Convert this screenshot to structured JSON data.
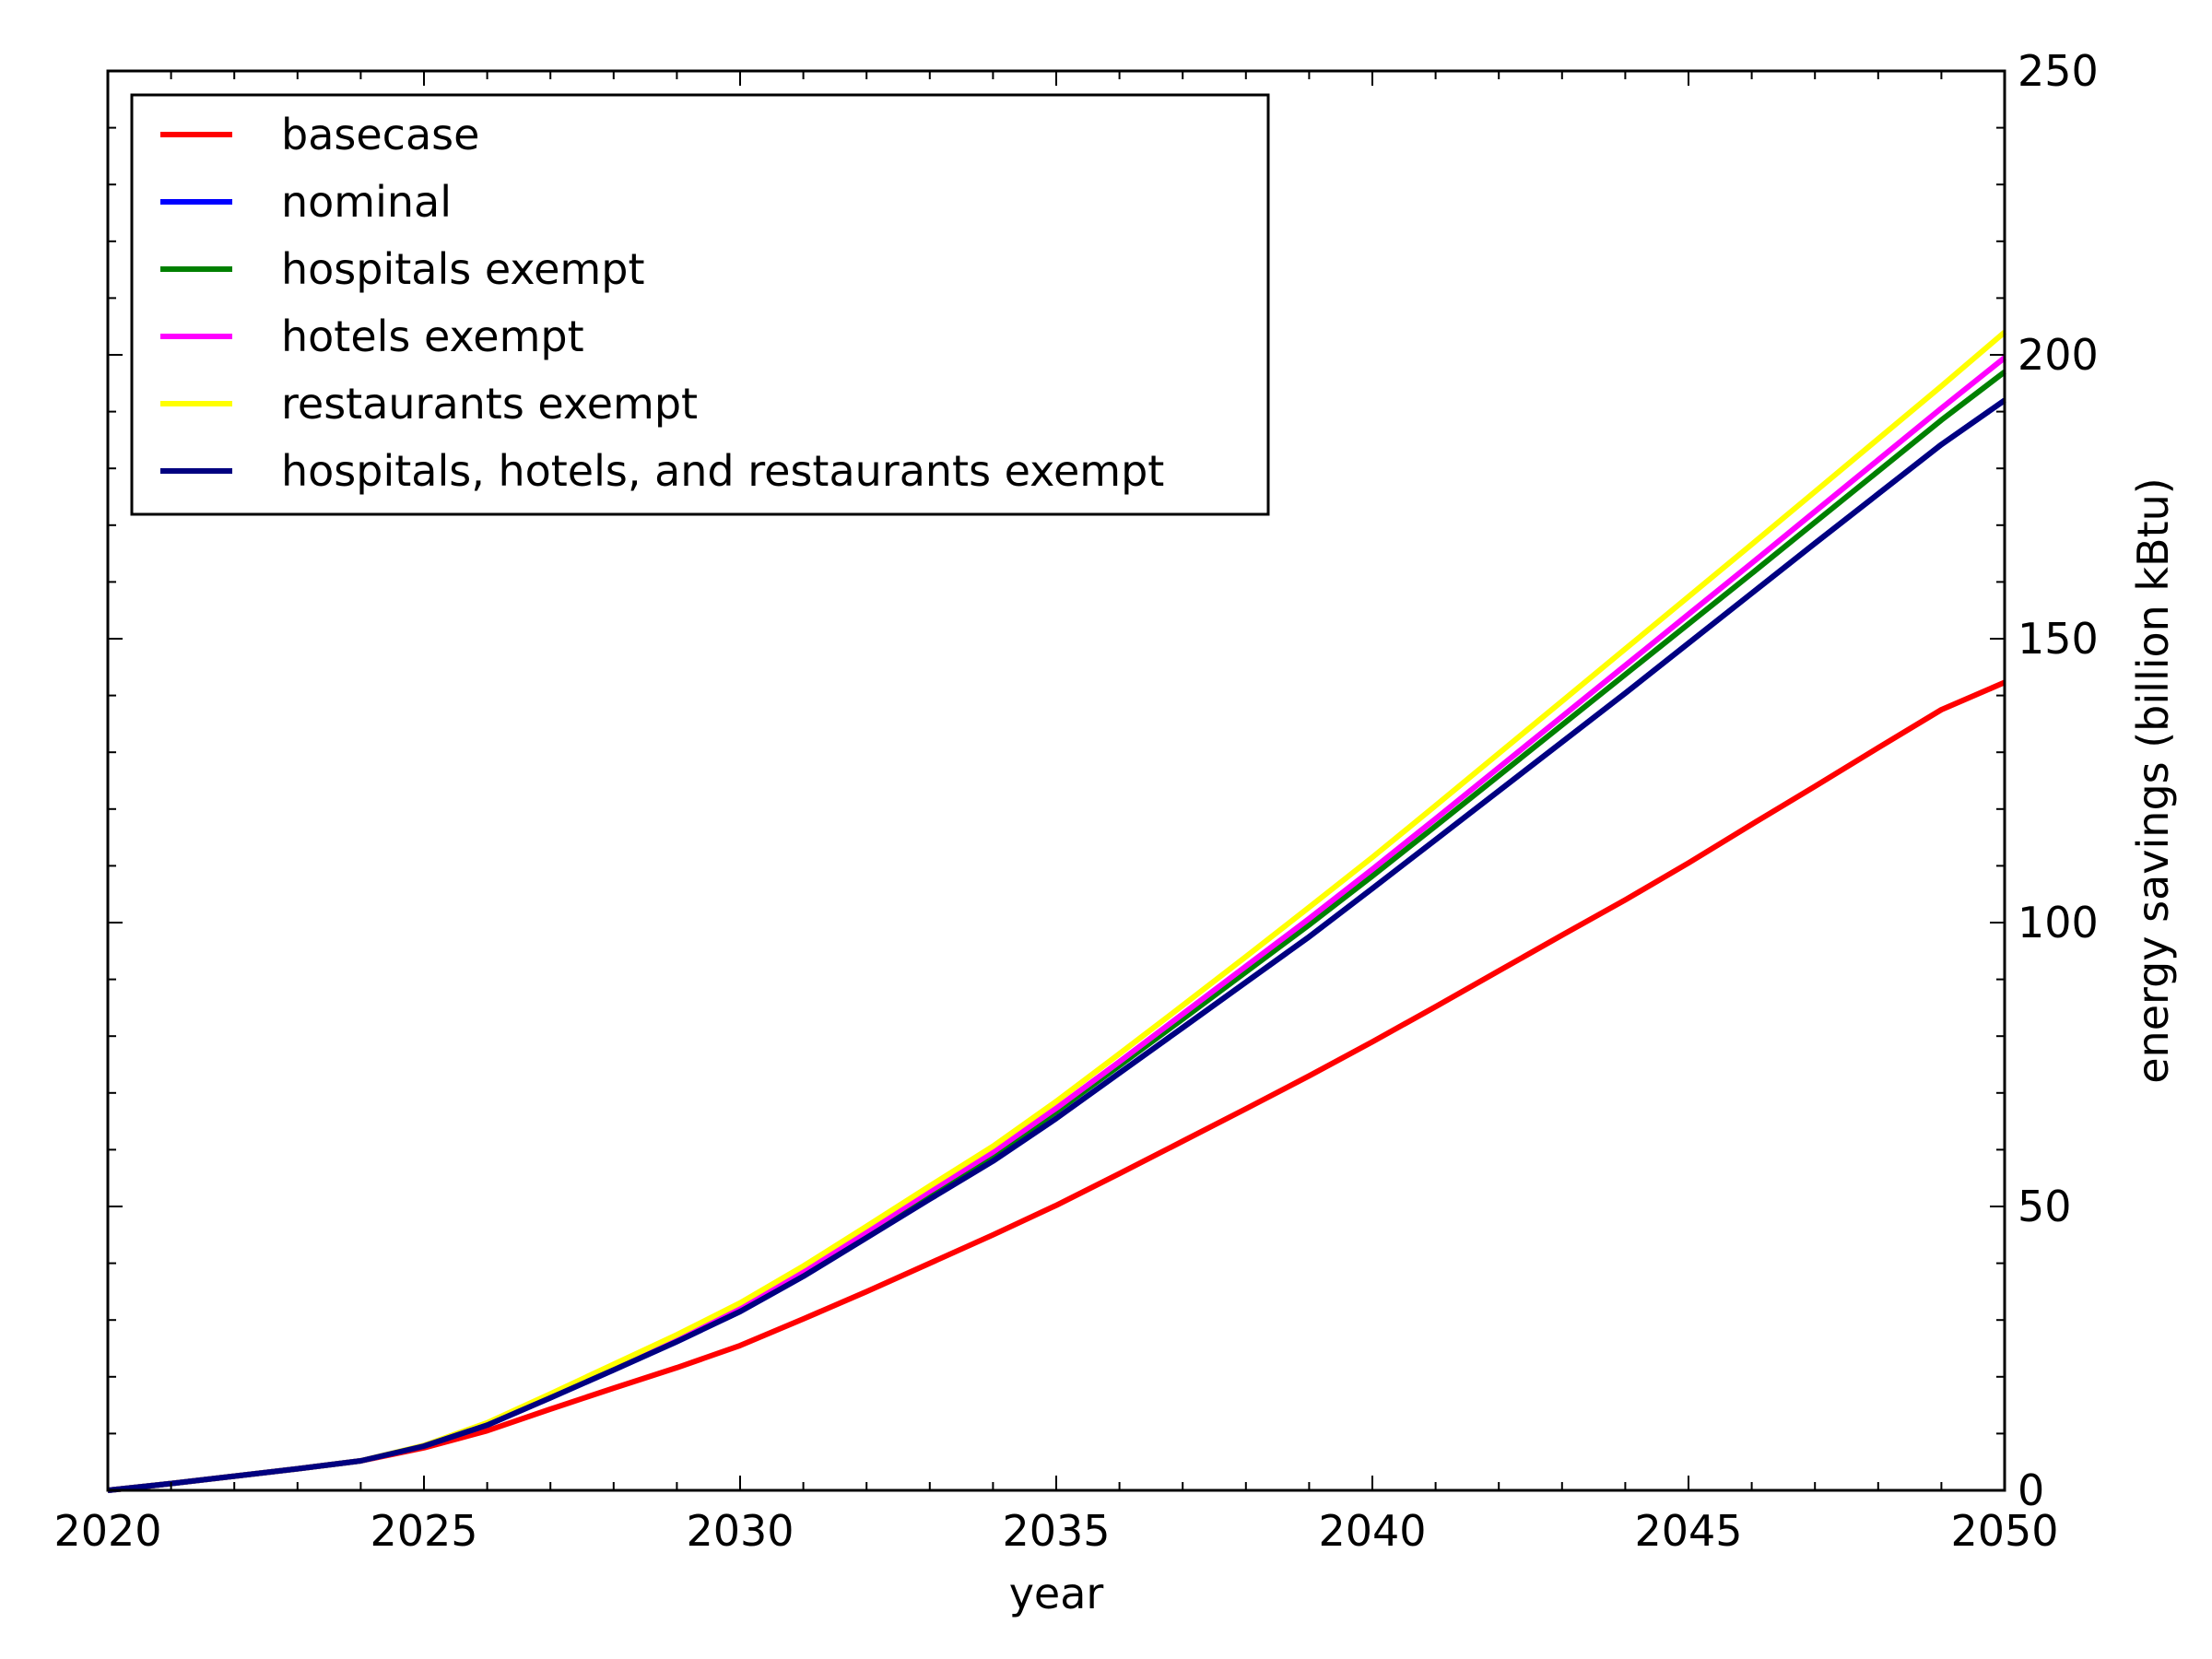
{
  "chart_data": {
    "type": "line",
    "title": "",
    "xlabel": "year",
    "ylabel": "energy savings (billion kBtu)",
    "y_axis_side": "right",
    "xlim": [
      2020,
      2050
    ],
    "ylim": [
      0,
      250
    ],
    "x_ticks": [
      2020,
      2025,
      2030,
      2035,
      2040,
      2045,
      2050
    ],
    "x_tick_labels": [
      "2020",
      "2025",
      "2030",
      "2035",
      "2040",
      "2045",
      "2050"
    ],
    "y_ticks": [
      0,
      50,
      100,
      150,
      200,
      250
    ],
    "y_tick_labels": [
      "0",
      "50",
      "100",
      "150",
      "200",
      "250"
    ],
    "x_minor_step": 1,
    "y_minor_step": 10,
    "grid": false,
    "legend_position": "upper-left",
    "x": [
      2020,
      2021,
      2022,
      2023,
      2024,
      2025,
      2026,
      2027,
      2028,
      2029,
      2030,
      2031,
      2032,
      2033,
      2034,
      2035,
      2036,
      2037,
      2038,
      2039,
      2040,
      2041,
      2042,
      2043,
      2044,
      2045,
      2046,
      2047,
      2048,
      2049,
      2050
    ],
    "series": [
      {
        "name": "basecase",
        "color": "#ff0000",
        "values": [
          0,
          1.2,
          2.5,
          3.8,
          5.2,
          7.5,
          10.5,
          14.3,
          18,
          21.6,
          25.5,
          30.2,
          35,
          40,
          45,
          50.2,
          55.8,
          61.5,
          67.2,
          73,
          79,
          85.2,
          91.5,
          97.8,
          104,
          110.5,
          117.3,
          124,
          130.8,
          137.5,
          142.3
        ]
      },
      {
        "name": "nominal",
        "color": "#0000ff",
        "values": [
          0,
          1.2,
          2.5,
          3.8,
          5.2,
          7.8,
          11.5,
          16.3,
          21.2,
          26.2,
          31.5,
          37.7,
          44.5,
          51.3,
          58,
          65.5,
          73.5,
          81.5,
          89.5,
          97.5,
          106,
          114.6,
          123.2,
          131.8,
          140.4,
          149.2,
          158,
          166.8,
          175.5,
          184.2,
          192
        ]
      },
      {
        "name": "hospitals exempt",
        "color": "#008000",
        "values": [
          0,
          1.2,
          2.5,
          3.8,
          5.2,
          7.8,
          11.6,
          16.5,
          21.5,
          26.6,
          32,
          38.3,
          45.1,
          52.1,
          59,
          66.7,
          74.8,
          83,
          91.3,
          99.6,
          108.2,
          117,
          125.9,
          134.8,
          143.7,
          152.6,
          161.5,
          170.5,
          179.5,
          188.5,
          197
        ]
      },
      {
        "name": "hotels exempt",
        "color": "#ff00ff",
        "values": [
          0,
          1.2,
          2.5,
          3.8,
          5.2,
          7.8,
          11.7,
          16.7,
          21.7,
          26.9,
          32.4,
          38.8,
          45.6,
          52.7,
          59.6,
          67.3,
          75.5,
          83.9,
          92.3,
          100.7,
          109.4,
          118.3,
          127.3,
          136.3,
          145.3,
          154.3,
          163.3,
          172.4,
          181.5,
          190.6,
          199.5
        ]
      },
      {
        "name": "restaurants exempt",
        "color": "#ffff00",
        "values": [
          0,
          1.2,
          2.5,
          3.8,
          5.2,
          7.9,
          11.9,
          17,
          22.2,
          27.4,
          33,
          39.5,
          46.5,
          53.6,
          60.6,
          68.5,
          76.9,
          85.4,
          94,
          102.7,
          111.5,
          120.6,
          129.8,
          139,
          148.2,
          157.4,
          166.6,
          175.9,
          185.2,
          194.5,
          204
        ]
      },
      {
        "name": "hospitals, hotels, and restaurants exempt",
        "color": "#000080",
        "values": [
          0,
          1.2,
          2.5,
          3.8,
          5.2,
          7.8,
          11.5,
          16.3,
          21.2,
          26.2,
          31.5,
          37.7,
          44.5,
          51.3,
          58,
          65.5,
          73.5,
          81.5,
          89.5,
          97.5,
          106,
          114.6,
          123.2,
          131.8,
          140.4,
          149.2,
          158,
          166.8,
          175.5,
          184.2,
          192
        ]
      }
    ]
  }
}
